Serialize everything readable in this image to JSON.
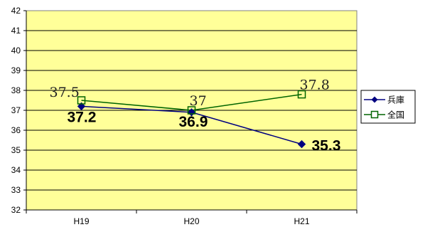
{
  "chart_data": {
    "type": "line",
    "title": "",
    "xlabel": "",
    "ylabel": "",
    "categories": [
      "H19",
      "H20",
      "H21"
    ],
    "ylim": [
      32,
      42
    ],
    "yticks": [
      "32",
      "33",
      "34",
      "35",
      "36",
      "37",
      "38",
      "39",
      "40",
      "41",
      "42"
    ],
    "grid": true,
    "legend_position": "right",
    "plot_background": "#ffff99",
    "series": [
      {
        "name": "兵庫",
        "values": [
          37.2,
          36.9,
          35.3
        ],
        "labels": [
          "37.2",
          "36.9",
          "35.3"
        ],
        "color": "#000080",
        "marker": "filled-diamond"
      },
      {
        "name": "全国",
        "values": [
          37.5,
          37,
          37.8
        ],
        "labels": [
          "37.5",
          "37",
          "37.8"
        ],
        "color": "#006400",
        "marker": "open-square"
      }
    ]
  }
}
